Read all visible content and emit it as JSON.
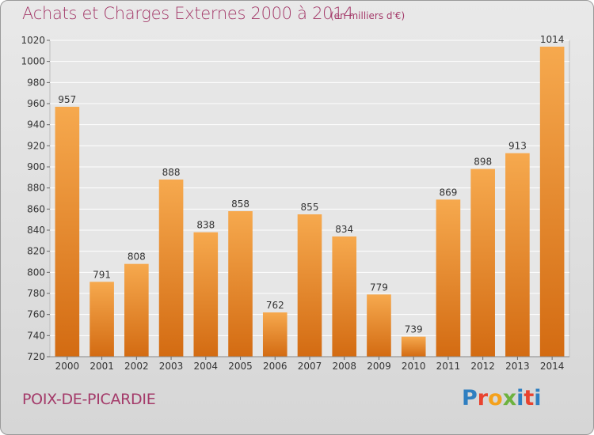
{
  "header": {
    "title": "Achats et Charges Externes 2000 à 2014",
    "unit": "(en milliers d'€)"
  },
  "footer": {
    "commune": "POIX-DE-PICARDIE",
    "logo_letters": [
      "P",
      "r",
      "o",
      "x",
      "i",
      "t",
      "i"
    ],
    "logo_colors": [
      "#2f7fc1",
      "#e9432f",
      "#f4a11c",
      "#6db23f",
      "#2f7fc1",
      "#e9432f",
      "#2f7fc1"
    ]
  },
  "chart_data": {
    "type": "bar",
    "categories": [
      "2000",
      "2001",
      "2002",
      "2003",
      "2004",
      "2005",
      "2006",
      "2007",
      "2008",
      "2009",
      "2010",
      "2011",
      "2012",
      "2013",
      "2014"
    ],
    "values": [
      957,
      791,
      808,
      888,
      838,
      858,
      762,
      855,
      834,
      779,
      739,
      869,
      898,
      913,
      1014
    ],
    "title": "Achats et Charges Externes 2000 à 2014",
    "ylim": [
      720,
      1020
    ],
    "yticks": [
      720,
      740,
      760,
      780,
      800,
      820,
      840,
      860,
      880,
      900,
      920,
      940,
      960,
      980,
      1000,
      1020
    ],
    "grid": true,
    "bar_color_light": "#f6a94e",
    "bar_color_dark": "#d36b12"
  }
}
